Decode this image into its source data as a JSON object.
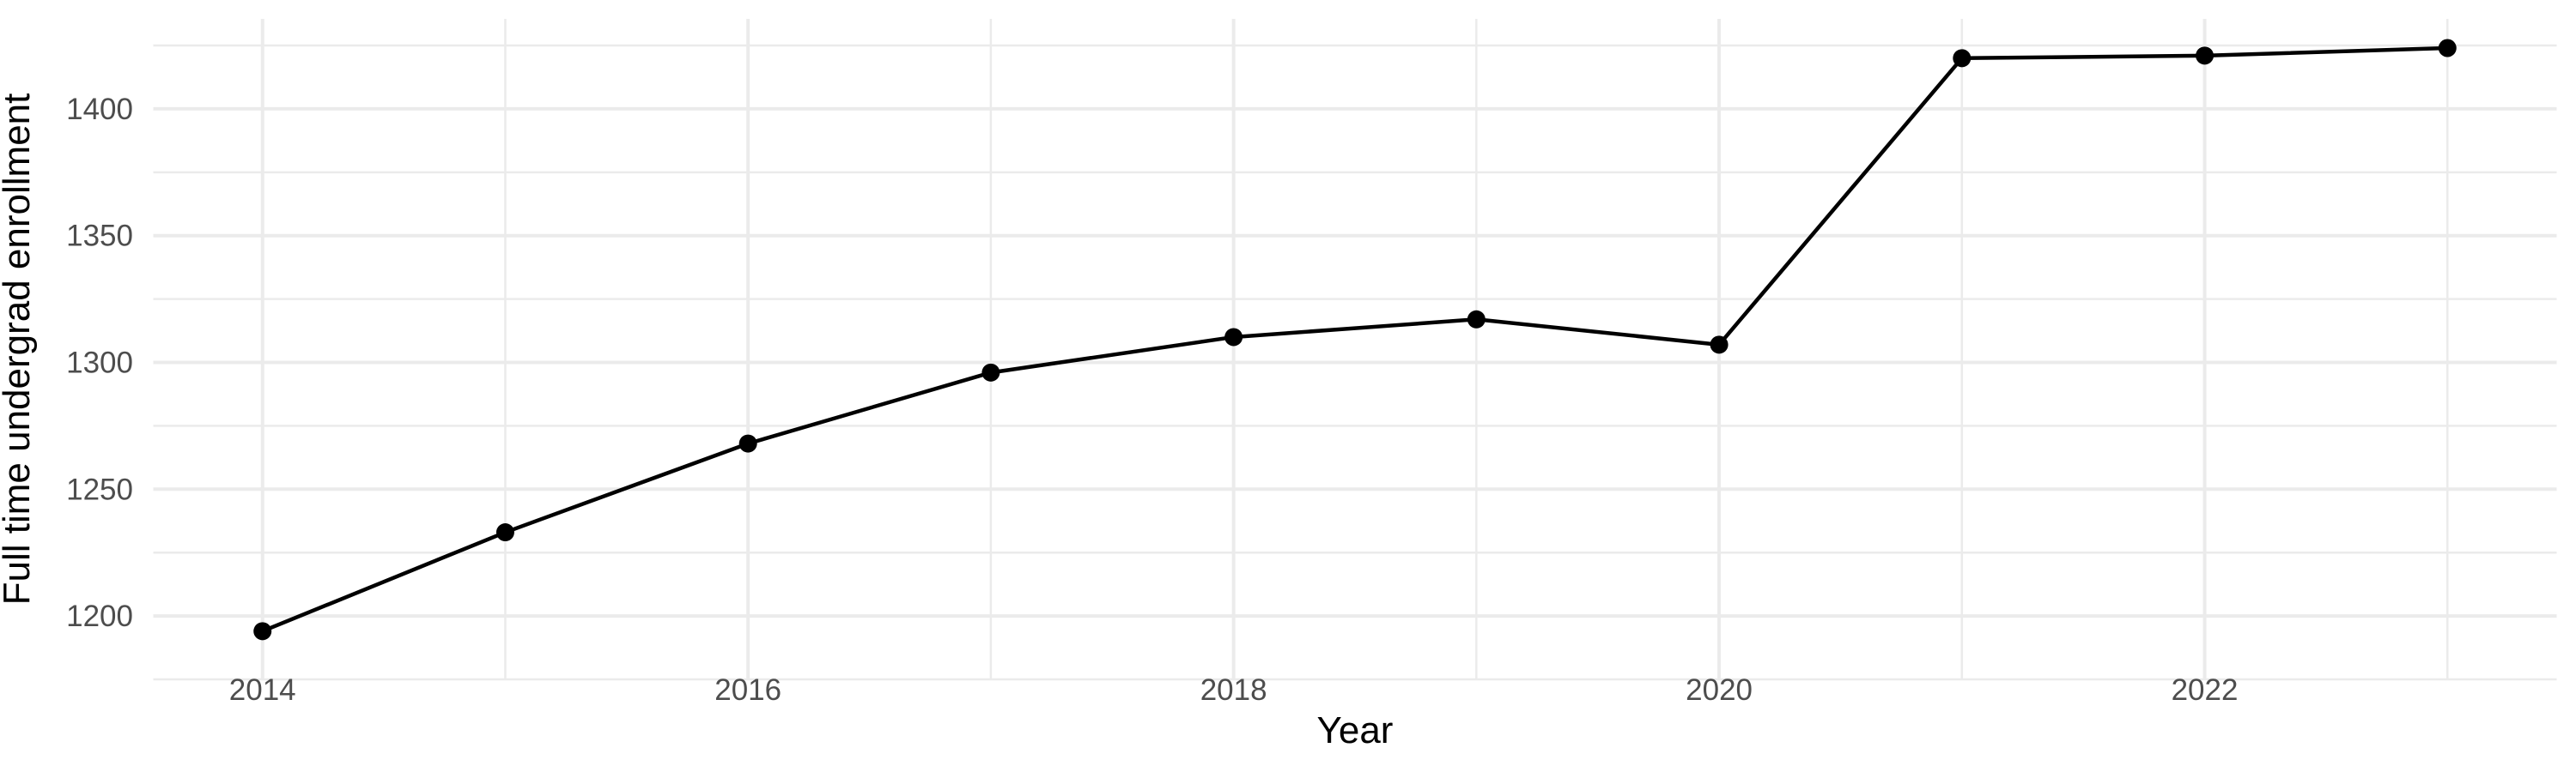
{
  "figure": {
    "background": "#FFFFFF"
  },
  "chart_data": {
    "type": "line",
    "title": "",
    "xlabel": "Year",
    "ylabel": "Full time undergrad enrollment",
    "x": [
      2014,
      2015,
      2016,
      2017,
      2018,
      2019,
      2020,
      2021,
      2022,
      2023
    ],
    "values": [
      1194,
      1233,
      1268,
      1296,
      1310,
      1317,
      1307,
      1420,
      1421,
      1424
    ],
    "series": [
      {
        "name": "Full time undergrad enrollment",
        "values": [
          1194,
          1233,
          1268,
          1296,
          1310,
          1317,
          1307,
          1420,
          1421,
          1424
        ]
      }
    ],
    "x_tick_values": [
      2014,
      2016,
      2018,
      2020,
      2022
    ],
    "x_tick_labels": [
      "2014",
      "2016",
      "2018",
      "2020",
      "2022"
    ],
    "x_minor_values": [
      2015,
      2017,
      2019,
      2021,
      2023
    ],
    "y_tick_values": [
      1200,
      1250,
      1300,
      1350,
      1400
    ],
    "y_tick_labels": [
      "1200",
      "1250",
      "1300",
      "1350",
      "1400"
    ],
    "y_minor_values": [
      1175,
      1225,
      1275,
      1325,
      1375,
      1425
    ],
    "xlim": [
      2013.55,
      2023.45
    ],
    "ylim": [
      1175,
      1435.5
    ],
    "grid": true,
    "legend": "none",
    "colors": {
      "line": "#000000",
      "point": "#000000",
      "grid_major": "#EBEBEB",
      "grid_minor": "#EBEBEB",
      "tick_label": "#4D4D4D",
      "axis_title": "#000000",
      "background": "#FFFFFF"
    }
  }
}
